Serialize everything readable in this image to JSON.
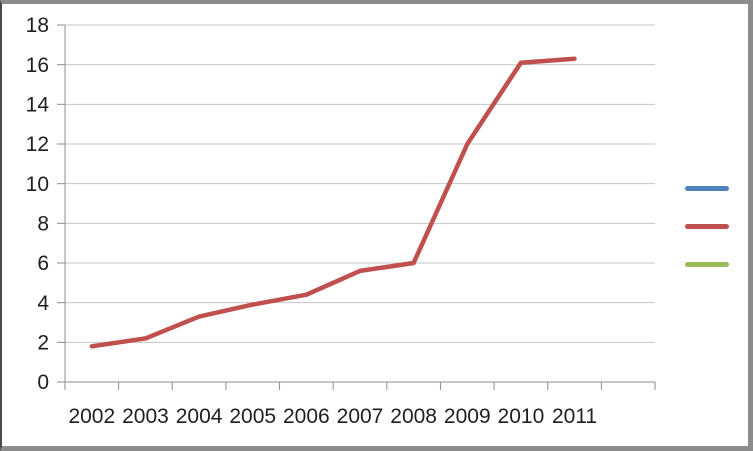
{
  "chart_data": {
    "type": "line",
    "title": "",
    "categories": [
      "2002",
      "2003",
      "2004",
      "2005",
      "2006",
      "2007",
      "2008",
      "2009",
      "2010",
      "2011"
    ],
    "series": [
      {
        "label": "",
        "color": "#4F81BD",
        "values": []
      },
      {
        "label": "",
        "color": "#C0504D",
        "values": [
          1.8,
          2.2,
          3.3,
          3.9,
          4.4,
          5.6,
          6.0,
          12.0,
          16.1,
          16.3
        ]
      },
      {
        "label": "",
        "color": "#9BBB59",
        "values": []
      }
    ],
    "xlabel": "",
    "ylabel": "",
    "ylim": [
      0,
      18
    ],
    "ytick_step": 2,
    "ytick_labels": [
      "0",
      "2",
      "4",
      "6",
      "8",
      "10",
      "12",
      "14",
      "16",
      "18"
    ],
    "grid": true,
    "legend_position": "right",
    "legend_labels_visible": false
  },
  "colors": {
    "background": "#FFFFFF",
    "gridline": "#C5C5C5",
    "axis": "#8E8E8E",
    "tick_label": "#1F1F1F",
    "frame_border": "#8C8C8C"
  }
}
